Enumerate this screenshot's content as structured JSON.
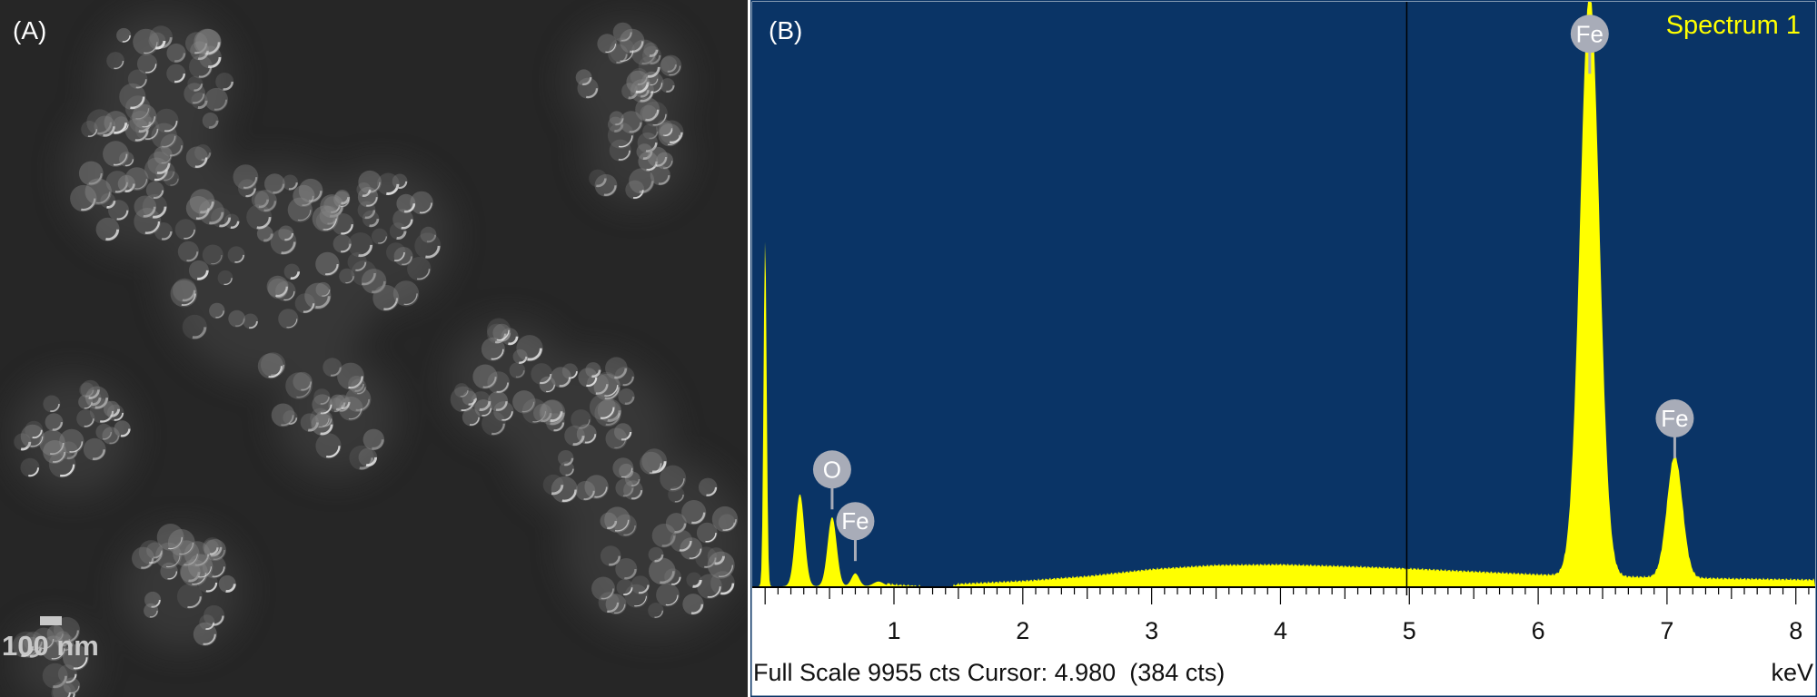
{
  "panel_a": {
    "label": "(A)",
    "scale_bar": "100 nm",
    "colors": {
      "background": "#262626",
      "particle": "#8c8c8c",
      "highlight": "#e8e8e8"
    }
  },
  "panel_b": {
    "label": "(B)",
    "spectrum_name": "Spectrum 1",
    "footer_left": "Full Scale 9955 cts Cursor: 4.980  (384 cts)",
    "footer_right": "keV",
    "colors": {
      "plot_background": "#0a3466",
      "spectrum_fill": "#ffff00",
      "marker": "#a8acb8"
    }
  },
  "chart_data": {
    "type": "area",
    "title": "Spectrum 1",
    "xlabel": "keV",
    "ylabel": "",
    "xlim": [
      -0.1,
      8.15
    ],
    "ylim": [
      0,
      9955
    ],
    "x_ticks": [
      1,
      2,
      3,
      4,
      5,
      6,
      7,
      8
    ],
    "grid": false,
    "full_scale_cts": 9955,
    "cursor": {
      "x": 4.98,
      "cts": 384
    },
    "peaks": [
      {
        "label": "",
        "x": 0.0,
        "height": 5900,
        "width": 0.012
      },
      {
        "label": "",
        "x": 0.27,
        "height": 1570,
        "width": 0.035
      },
      {
        "label": "O",
        "x": 0.52,
        "height": 1180,
        "width": 0.035
      },
      {
        "label": "Fe",
        "x": 0.7,
        "height": 220,
        "width": 0.03
      },
      {
        "label": "",
        "x": 0.88,
        "height": 80,
        "width": 0.04
      },
      {
        "label": "Fe",
        "x": 6.4,
        "height": 9955,
        "width": 0.075
      },
      {
        "label": "Fe",
        "x": 7.06,
        "height": 2080,
        "width": 0.06
      }
    ],
    "background_points": [
      {
        "x": 0.95,
        "y": 35
      },
      {
        "x": 1.2,
        "y": 0
      },
      {
        "x": 1.45,
        "y": 0
      },
      {
        "x": 1.5,
        "y": 40
      },
      {
        "x": 2.0,
        "y": 90
      },
      {
        "x": 2.5,
        "y": 170
      },
      {
        "x": 3.0,
        "y": 290
      },
      {
        "x": 3.5,
        "y": 360
      },
      {
        "x": 4.0,
        "y": 370
      },
      {
        "x": 4.5,
        "y": 340
      },
      {
        "x": 5.0,
        "y": 300
      },
      {
        "x": 5.5,
        "y": 250
      },
      {
        "x": 6.0,
        "y": 200
      },
      {
        "x": 6.3,
        "y": 180
      },
      {
        "x": 7.5,
        "y": 130
      },
      {
        "x": 8.15,
        "y": 110
      }
    ],
    "markers": [
      {
        "label": "O",
        "x": 0.52,
        "level": 1990
      },
      {
        "label": "Fe",
        "x": 0.7,
        "level": 1110
      },
      {
        "label": "Fe",
        "x": 6.4,
        "level": 9410
      },
      {
        "label": "Fe",
        "x": 7.06,
        "level": 2860
      }
    ]
  }
}
